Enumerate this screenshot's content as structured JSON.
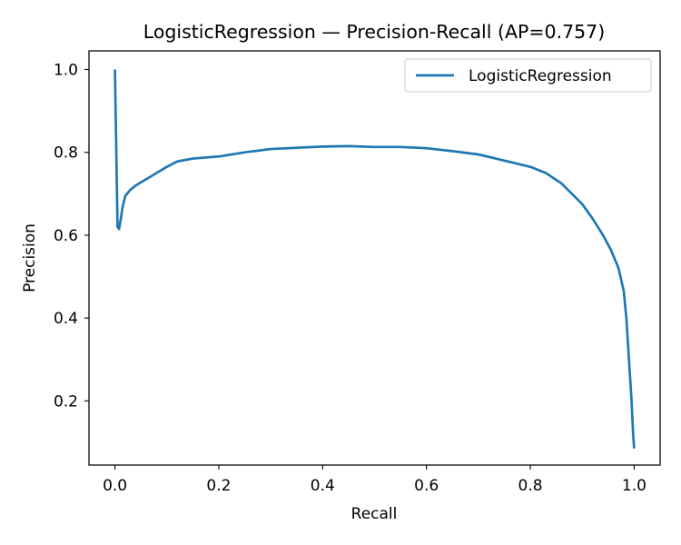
{
  "chart_data": {
    "type": "line",
    "title": "LogisticRegression — Precision-Recall (AP=0.757)",
    "xlabel": "Recall",
    "ylabel": "Precision",
    "xlim": [
      -0.05,
      1.05
    ],
    "ylim": [
      0.045,
      1.045
    ],
    "x_ticks": [
      0.0,
      0.2,
      0.4,
      0.6,
      0.8,
      1.0
    ],
    "x_tick_labels": [
      "0.0",
      "0.2",
      "0.4",
      "0.6",
      "0.8",
      "1.0"
    ],
    "y_ticks": [
      0.2,
      0.4,
      0.6,
      0.8,
      1.0
    ],
    "y_tick_labels": [
      "0.2",
      "0.4",
      "0.6",
      "0.8",
      "1.0"
    ],
    "grid": false,
    "legend": {
      "placement": "upper right",
      "entries": [
        "LogisticRegression"
      ]
    },
    "series": [
      {
        "name": "LogisticRegression",
        "color": "#1f77b4",
        "points": [
          [
            0.0,
            1.0
          ],
          [
            0.005,
            0.62
          ],
          [
            0.008,
            0.615
          ],
          [
            0.012,
            0.645
          ],
          [
            0.015,
            0.67
          ],
          [
            0.02,
            0.695
          ],
          [
            0.03,
            0.71
          ],
          [
            0.04,
            0.72
          ],
          [
            0.06,
            0.735
          ],
          [
            0.08,
            0.75
          ],
          [
            0.1,
            0.765
          ],
          [
            0.12,
            0.778
          ],
          [
            0.15,
            0.785
          ],
          [
            0.2,
            0.79
          ],
          [
            0.25,
            0.8
          ],
          [
            0.3,
            0.808
          ],
          [
            0.35,
            0.811
          ],
          [
            0.4,
            0.814
          ],
          [
            0.45,
            0.815
          ],
          [
            0.5,
            0.813
          ],
          [
            0.55,
            0.813
          ],
          [
            0.6,
            0.81
          ],
          [
            0.65,
            0.803
          ],
          [
            0.7,
            0.795
          ],
          [
            0.75,
            0.78
          ],
          [
            0.8,
            0.765
          ],
          [
            0.83,
            0.75
          ],
          [
            0.86,
            0.725
          ],
          [
            0.88,
            0.7
          ],
          [
            0.9,
            0.675
          ],
          [
            0.92,
            0.64
          ],
          [
            0.94,
            0.6
          ],
          [
            0.955,
            0.565
          ],
          [
            0.97,
            0.52
          ],
          [
            0.98,
            0.465
          ],
          [
            0.985,
            0.4
          ],
          [
            0.99,
            0.3
          ],
          [
            0.995,
            0.2
          ],
          [
            0.998,
            0.12
          ],
          [
            1.0,
            0.085
          ]
        ]
      }
    ]
  }
}
